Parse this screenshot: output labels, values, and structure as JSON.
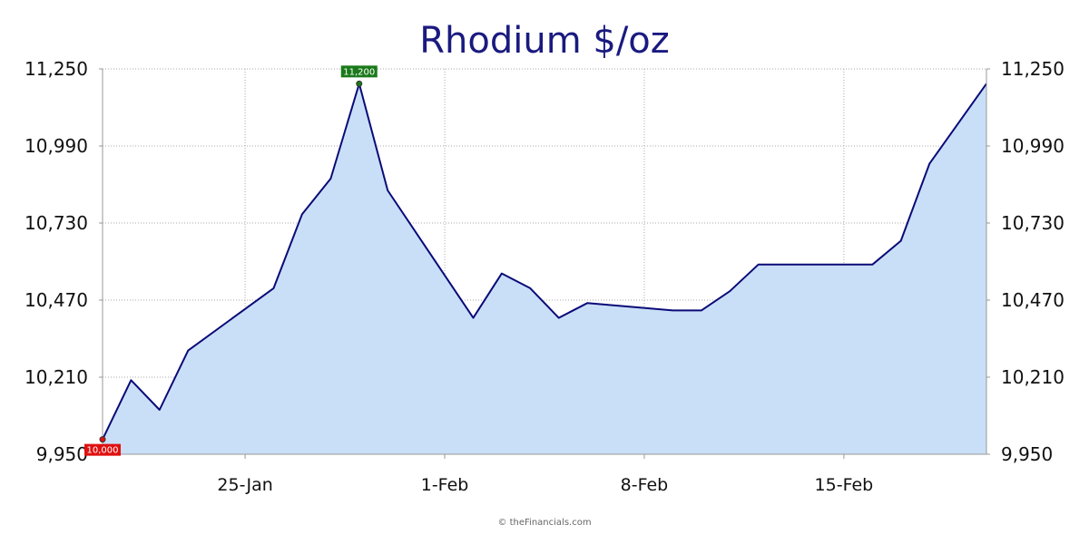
{
  "chart_data": {
    "type": "area",
    "title": "Rhodium $/oz",
    "xlabel": "",
    "ylabel": "",
    "x_tick_labels": [
      "25-Jan",
      "1-Feb",
      "8-Feb",
      "15-Feb"
    ],
    "x_tick_dates": [
      "2024-01-25",
      "2024-02-01",
      "2024-02-08",
      "2024-02-15"
    ],
    "y_ticks": [
      9950,
      10210,
      10470,
      10730,
      10990,
      11250
    ],
    "y_tick_labels": [
      "9,950",
      "10,210",
      "10,470",
      "10,730",
      "10,990",
      "11,250"
    ],
    "ylim": [
      9950,
      11250
    ],
    "xlim": [
      "2024-01-20",
      "2024-02-20"
    ],
    "grid": true,
    "legend": "none",
    "dual_y_axis": true,
    "series": [
      {
        "x": [
          "2024-01-20",
          "2024-01-21",
          "2024-01-22",
          "2024-01-23",
          "2024-01-26",
          "2024-01-27",
          "2024-01-28",
          "2024-01-29",
          "2024-01-30",
          "2024-02-02",
          "2024-02-03",
          "2024-02-04",
          "2024-02-05",
          "2024-02-06",
          "2024-02-09",
          "2024-02-10",
          "2024-02-11",
          "2024-02-12",
          "2024-02-16",
          "2024-02-17",
          "2024-02-18",
          "2024-02-20"
        ],
        "y": [
          10000,
          10200,
          10100,
          10300,
          10510,
          10760,
          10880,
          11200,
          10840,
          10410,
          10560,
          10510,
          10410,
          10460,
          10435,
          10435,
          10500,
          10590,
          10590,
          10670,
          10930,
          11200
        ]
      }
    ],
    "annotations": [
      {
        "text": "11,200",
        "x": "2024-01-29",
        "y": 11200,
        "color": "#1a7a1a",
        "position": "above"
      },
      {
        "text": "10,000",
        "x": "2024-01-20",
        "y": 10000,
        "color": "#e01010",
        "position": "below"
      }
    ],
    "credit": "© theFinancials.com"
  },
  "colors": {
    "line": "#0a0a78",
    "fill": "#c9dff7",
    "grid": "#aaaaaa",
    "axis": "#999999",
    "title": "#1a1a80"
  }
}
